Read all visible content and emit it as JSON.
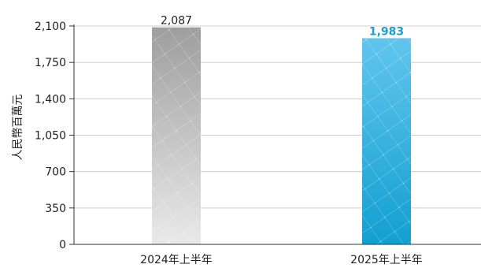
{
  "chart_data": {
    "type": "bar",
    "title": "",
    "xlabel": "",
    "ylabel": "人民幣百萬元",
    "categories": [
      "2024年上半年",
      "2025年上半年"
    ],
    "series": [
      {
        "values": [
          2087,
          1983
        ]
      }
    ],
    "data_labels": [
      "2,087",
      "1,983"
    ],
    "ylim": [
      0,
      2100
    ],
    "y_ticks": [
      0,
      350,
      700,
      1050,
      1400,
      1750,
      2100
    ],
    "y_tick_labels": [
      "0",
      "350",
      "700",
      "1,050",
      "1,400",
      "1,750",
      "2,100"
    ],
    "grid": true,
    "legend": "none",
    "colors": {
      "bar_2024_top": "#9e9e9e",
      "bar_2024_bottom": "#e9e9e9",
      "bar_2025_top": "#61c5ee",
      "bar_2025_bottom": "#129fd0",
      "highlight_label": "#1a9fd0",
      "axis": "#333333",
      "grid": "#cccccc"
    }
  }
}
